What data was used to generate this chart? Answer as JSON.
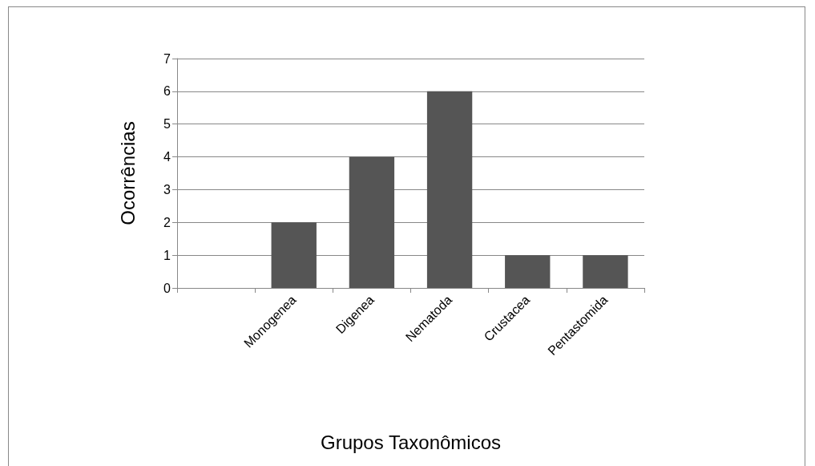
{
  "chart_data": {
    "type": "bar",
    "xlabel": "Grupos Taxonômicos",
    "ylabel": "Ocorrências",
    "categories": [
      null,
      "Monogenea",
      "Digenea",
      "Nematoda",
      "Crustacea",
      "Pentastomida"
    ],
    "values": [
      null,
      2,
      4,
      6,
      1,
      1
    ],
    "color": "#555555",
    "ylim": [
      0,
      7
    ],
    "yticks": [
      0,
      1,
      2,
      3,
      4,
      5,
      6,
      7
    ],
    "grid": "y"
  }
}
